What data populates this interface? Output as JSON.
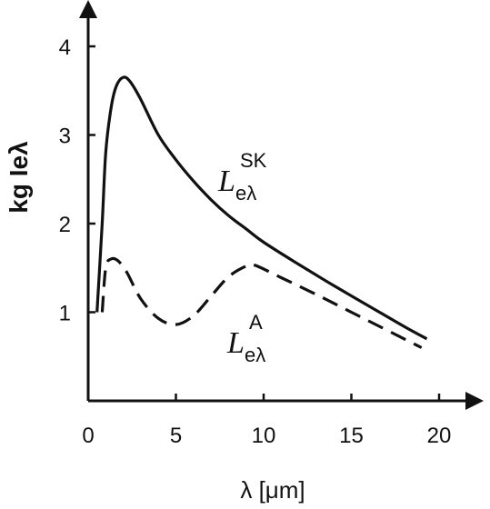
{
  "chart_data": {
    "type": "line",
    "title": "",
    "xlabel": "λ [μm]",
    "ylabel": "kg Ieλ",
    "xlim": [
      0,
      22
    ],
    "ylim": [
      0,
      4.6
    ],
    "xticks": [
      "0",
      "5",
      "10",
      "15",
      "20"
    ],
    "yticks": [
      "1",
      "2",
      "3",
      "4"
    ],
    "grid": false,
    "series": [
      {
        "name": "SK",
        "label_main": "L",
        "label_sub": "eλ",
        "label_sup": "SK",
        "style": "solid",
        "x": [
          0.5,
          0.8,
          1.0,
          1.3,
          1.6,
          2.0,
          2.4,
          3.0,
          4.0,
          5.0,
          6.0,
          7.0,
          8.0,
          9.0,
          10.0,
          12.0,
          14.0,
          16.0,
          18.0,
          19.3
        ],
        "y": [
          1.0,
          2.0,
          2.8,
          3.3,
          3.55,
          3.65,
          3.6,
          3.4,
          3.0,
          2.72,
          2.48,
          2.27,
          2.09,
          1.94,
          1.79,
          1.54,
          1.3,
          1.07,
          0.84,
          0.7
        ]
      },
      {
        "name": "A",
        "label_main": "L",
        "label_sub": "eλ",
        "label_sup": "A",
        "style": "dashed",
        "x": [
          0.8,
          1.0,
          1.3,
          1.7,
          2.2,
          3.0,
          4.0,
          5.0,
          6.0,
          7.0,
          8.0,
          9.0,
          9.5,
          11.0,
          13.0,
          15.0,
          17.0,
          19.0
        ],
        "y": [
          1.0,
          1.5,
          1.6,
          1.58,
          1.45,
          1.15,
          0.93,
          0.86,
          0.96,
          1.18,
          1.4,
          1.52,
          1.53,
          1.39,
          1.2,
          1.0,
          0.8,
          0.6
        ]
      }
    ]
  }
}
